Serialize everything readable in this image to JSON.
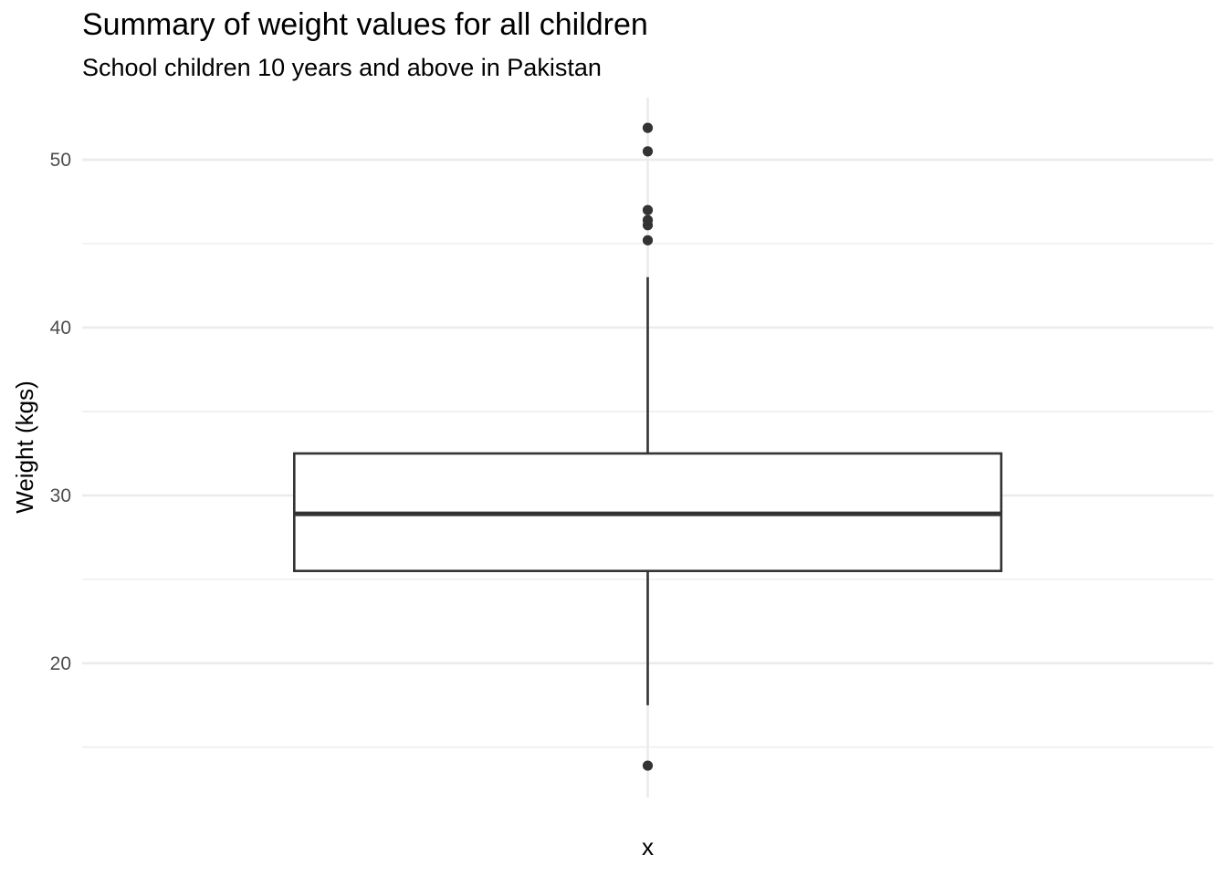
{
  "chart_data": {
    "type": "boxplot",
    "title": "Summary of weight values for all children",
    "subtitle": "School children 10 years and above in Pakistan",
    "xlabel": "",
    "ylabel": "Weight (kgs)",
    "categories": [
      "x"
    ],
    "ylim": [
      12,
      53.7
    ],
    "y_ticks": [
      20,
      30,
      40,
      50
    ],
    "y_tick_labels": [
      "20",
      "30",
      "40",
      "50"
    ],
    "grid": true,
    "legend": "none",
    "box": {
      "category": "x",
      "whisker_low": 17.5,
      "q1": 25.5,
      "median": 28.9,
      "q3": 32.5,
      "whisker_high": 43.0,
      "outliers": [
        13.9,
        45.2,
        46.1,
        46.4,
        47.0,
        50.5,
        51.9
      ]
    },
    "colors": {
      "grid": "#ebebeb",
      "box_line": "#333333",
      "box_fill": "#ffffff",
      "point": "#333333"
    }
  }
}
